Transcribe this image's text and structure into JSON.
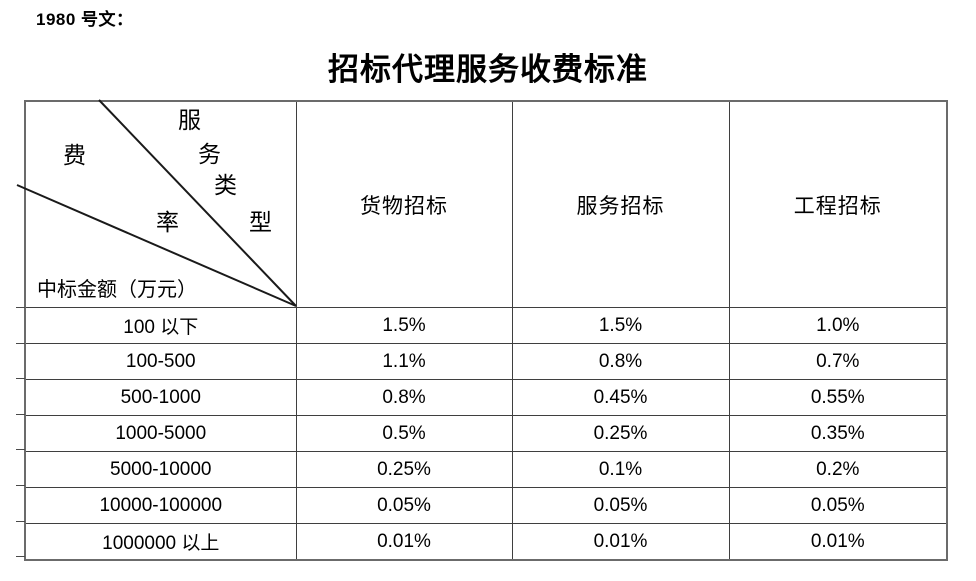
{
  "doc_label": "1980 号文：",
  "title": "招标代理服务收费标准",
  "table": {
    "corner": {
      "type_chars": [
        "服",
        "务",
        "类",
        "型"
      ],
      "fee_chars": [
        "费",
        "率"
      ],
      "type_label": "服务类型",
      "fee_label": "费率",
      "row_axis_label": "中标金额（万元）"
    },
    "columns": [
      "货物招标",
      "服务招标",
      "工程招标"
    ],
    "rows": [
      {
        "range": "100 以下",
        "values": [
          "1.5%",
          "1.5%",
          "1.0%"
        ]
      },
      {
        "range": "100-500",
        "values": [
          "1.1%",
          "0.8%",
          "0.7%"
        ]
      },
      {
        "range": "500-1000",
        "values": [
          "0.8%",
          "0.45%",
          "0.55%"
        ]
      },
      {
        "range": "1000-5000",
        "values": [
          "0.5%",
          "0.25%",
          "0.35%"
        ]
      },
      {
        "range": "5000-10000",
        "values": [
          "0.25%",
          "0.1%",
          "0.2%"
        ]
      },
      {
        "range": "10000-100000",
        "values": [
          "0.05%",
          "0.05%",
          "0.05%"
        ]
      },
      {
        "range": "1000000 以上",
        "values": [
          "0.01%",
          "0.01%",
          "0.01%"
        ]
      }
    ]
  },
  "colors": {
    "text": "#000000",
    "border_inner": "#3f3f3f",
    "border_outer": "#6b6b6b",
    "diagonal_line": "#1a1a1a",
    "background": "#ffffff"
  }
}
